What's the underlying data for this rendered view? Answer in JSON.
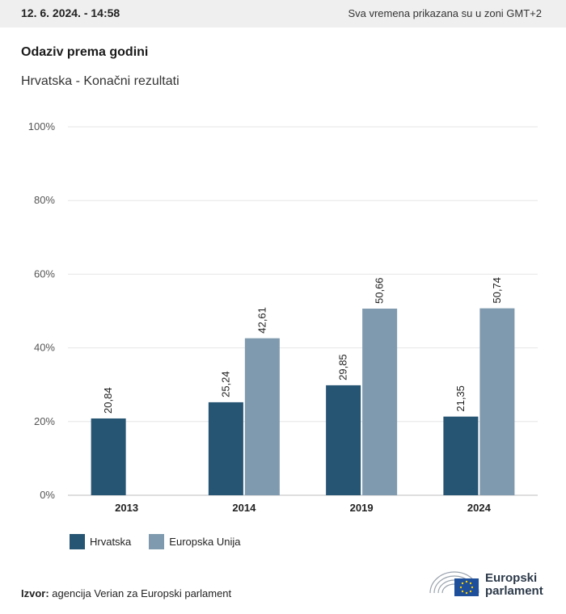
{
  "header": {
    "date": "12. 6. 2024. - 14:58",
    "timezone_note": "Sva vremena prikazana su u zoni GMT+2"
  },
  "footer": {
    "source_label": "Izvor:",
    "source_text": "agencija Verian za Europski parlament",
    "logo_line1": "Europski",
    "logo_line2": "parlament"
  },
  "colors": {
    "series1": "#265473",
    "series2": "#7f9aae",
    "grid": "#e6e6e6",
    "topbar": "#efefef"
  },
  "chart_data": {
    "type": "bar",
    "title": "Odaziv prema godini",
    "subtitle": "Hrvatska - Konačni rezultati",
    "categories": [
      "2013",
      "2014",
      "2019",
      "2024"
    ],
    "series": [
      {
        "name": "Hrvatska",
        "values": [
          20.84,
          25.24,
          29.85,
          21.35
        ],
        "labels": [
          "20,84",
          "25,24",
          "29,85",
          "21,35"
        ]
      },
      {
        "name": "Europska Unija",
        "values": [
          null,
          42.61,
          50.66,
          50.74
        ],
        "labels": [
          "",
          "42,61",
          "50,66",
          "50,74"
        ]
      }
    ],
    "y_ticks": [
      "0%",
      "20%",
      "40%",
      "60%",
      "80%",
      "100%"
    ],
    "ylim": [
      0,
      100
    ],
    "grid": true,
    "legend_position": "bottom-left"
  }
}
